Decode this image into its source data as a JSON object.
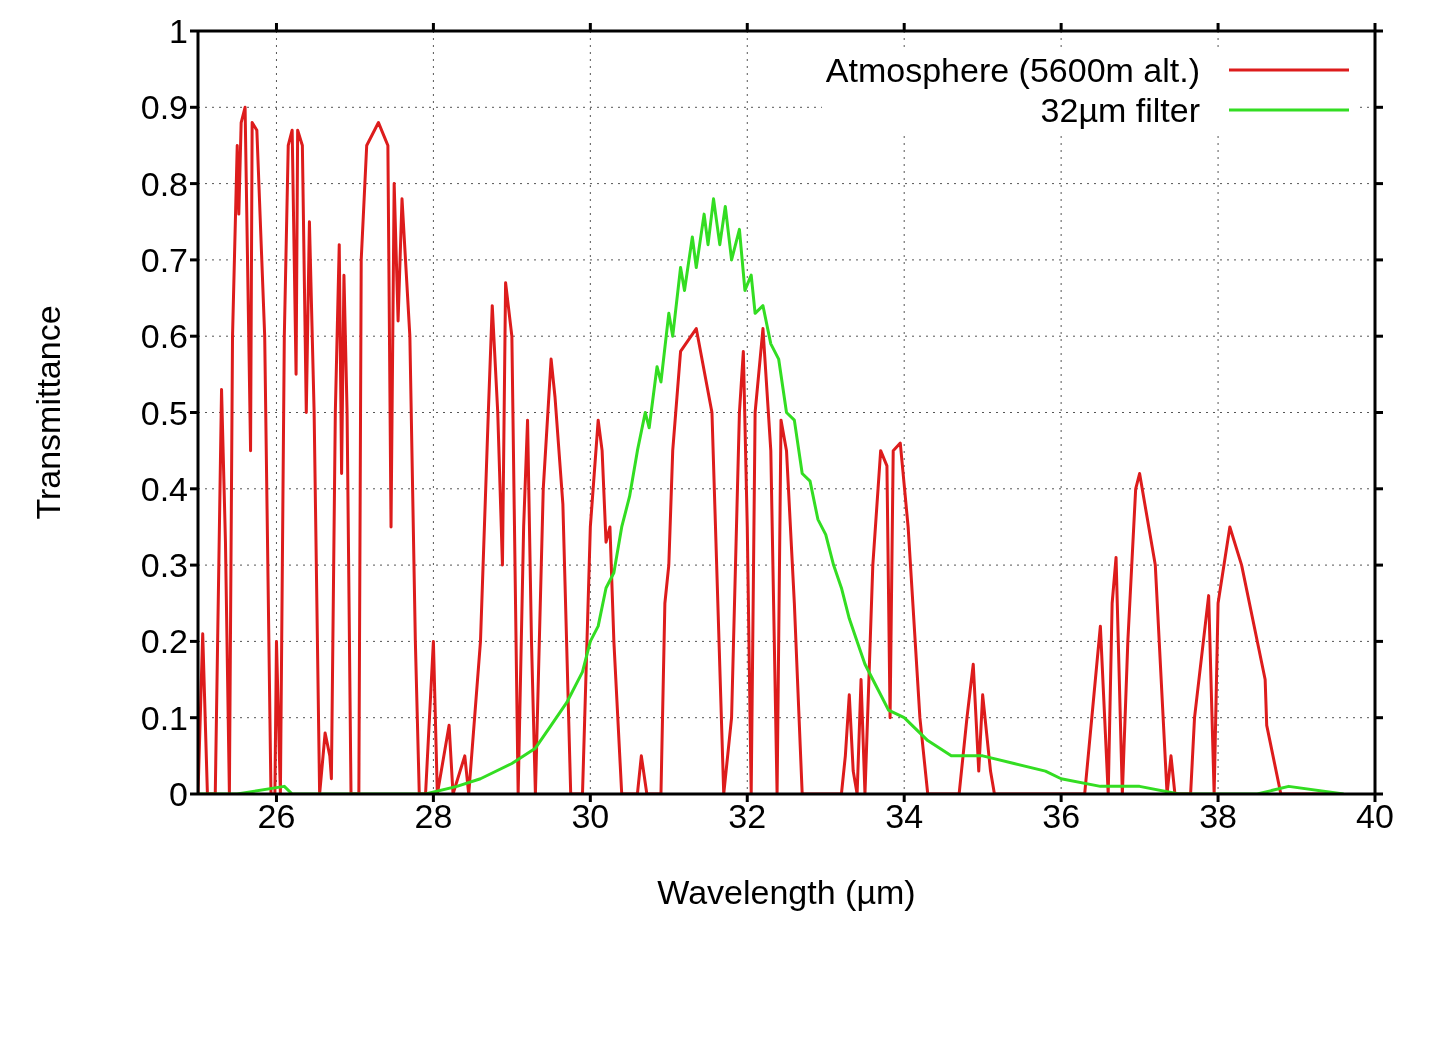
{
  "chart_data": {
    "type": "line",
    "xlabel": "Wavelength (µm)",
    "ylabel": "Transmittance",
    "xlim": [
      25,
      40
    ],
    "xticks": [
      26,
      28,
      30,
      32,
      34,
      36,
      38,
      40
    ],
    "ylim": [
      0,
      1
    ],
    "yticks": [
      0,
      0.1,
      0.2,
      0.3,
      0.4,
      0.5,
      0.6,
      0.7,
      0.8,
      0.9,
      1
    ],
    "grid": true,
    "legend": "top right",
    "line_style": "solid",
    "series": [
      {
        "name": "Atmosphere (5600m alt.)",
        "color": "#dd1c1c",
        "x": [
          25.0,
          25.06,
          25.12,
          25.22,
          25.3,
          25.35,
          25.4,
          25.44,
          25.5,
          25.52,
          25.55,
          25.6,
          25.67,
          25.69,
          25.75,
          25.85,
          25.93,
          25.98,
          26.0,
          26.05,
          26.1,
          26.15,
          26.2,
          26.25,
          26.27,
          26.33,
          26.38,
          26.42,
          26.48,
          26.55,
          26.62,
          26.68,
          26.7,
          26.75,
          26.8,
          26.83,
          26.86,
          26.9,
          26.95,
          27.05,
          27.08,
          27.15,
          27.3,
          27.38,
          27.42,
          27.46,
          27.5,
          27.55,
          27.6,
          27.7,
          27.77,
          27.82,
          27.9,
          28.0,
          28.05,
          28.2,
          28.25,
          28.4,
          28.45,
          28.6,
          28.7,
          28.75,
          28.82,
          28.88,
          28.92,
          29.0,
          29.08,
          29.15,
          29.2,
          29.25,
          29.3,
          29.4,
          29.5,
          29.55,
          29.65,
          29.75,
          29.9,
          30.0,
          30.1,
          30.15,
          30.2,
          30.25,
          30.3,
          30.4,
          30.6,
          30.65,
          30.72,
          30.9,
          30.95,
          31.0,
          31.05,
          31.15,
          31.35,
          31.55,
          31.7,
          31.8,
          31.9,
          31.95,
          32.0,
          32.05,
          32.1,
          32.2,
          32.3,
          32.38,
          32.43,
          32.5,
          32.6,
          32.7,
          33.2,
          33.25,
          33.3,
          33.35,
          33.4,
          33.45,
          33.5,
          33.6,
          33.7,
          33.78,
          33.82,
          33.86,
          33.95,
          34.05,
          34.2,
          34.3,
          34.7,
          34.8,
          34.88,
          34.95,
          35.0,
          35.1,
          35.15,
          36.3,
          36.5,
          36.6,
          36.65,
          36.7,
          36.78,
          36.85,
          36.95,
          37.0,
          37.2,
          37.35,
          37.4,
          37.45,
          37.65,
          37.7,
          37.88,
          37.95,
          38.0,
          38.15,
          38.3,
          38.6,
          38.62,
          38.8,
          39.5
        ],
        "values": [
          0,
          0.21,
          0,
          0,
          0.53,
          0.33,
          0,
          0.6,
          0.85,
          0.76,
          0.88,
          0.9,
          0.45,
          0.88,
          0.87,
          0.6,
          0,
          0,
          0.2,
          0,
          0.6,
          0.85,
          0.87,
          0.55,
          0.87,
          0.85,
          0.5,
          0.75,
          0.5,
          0,
          0.08,
          0.05,
          0.02,
          0.5,
          0.72,
          0.42,
          0.68,
          0.5,
          0,
          0,
          0.7,
          0.85,
          0.88,
          0.86,
          0.85,
          0.35,
          0.8,
          0.62,
          0.78,
          0.6,
          0.2,
          0,
          0,
          0.2,
          0,
          0.09,
          0,
          0.05,
          0,
          0.2,
          0.5,
          0.64,
          0.5,
          0.3,
          0.67,
          0.6,
          0,
          0.35,
          0.49,
          0.2,
          0,
          0.4,
          0.57,
          0.52,
          0.38,
          0,
          0,
          0.35,
          0.49,
          0.45,
          0.33,
          0.35,
          0.2,
          0,
          0,
          0.05,
          0,
          0,
          0.25,
          0.3,
          0.45,
          0.58,
          0.61,
          0.5,
          0,
          0.1,
          0.5,
          0.58,
          0.35,
          0,
          0.5,
          0.61,
          0.45,
          0,
          0.49,
          0.45,
          0.25,
          0,
          0,
          0.05,
          0.13,
          0.03,
          0,
          0.15,
          0,
          0.3,
          0.45,
          0.43,
          0.1,
          0.45,
          0.46,
          0.35,
          0.1,
          0,
          0,
          0.1,
          0.17,
          0.03,
          0.13,
          0.03,
          0,
          0,
          0.22,
          0,
          0.25,
          0.31,
          0,
          0.2,
          0.4,
          0.42,
          0.3,
          0,
          0.05,
          0,
          0,
          0.1,
          0.26,
          0,
          0.25,
          0.35,
          0.3,
          0.15,
          0.09,
          0,
          0
        ]
      },
      {
        "name": "32µm filter",
        "color": "#33dd22",
        "x": [
          25.0,
          25.5,
          26.1,
          26.2,
          27.9,
          28.3,
          28.6,
          29.0,
          29.3,
          29.5,
          29.7,
          29.9,
          30.0,
          30.1,
          30.2,
          30.3,
          30.4,
          30.5,
          30.6,
          30.7,
          30.75,
          30.85,
          30.9,
          31.0,
          31.05,
          31.15,
          31.2,
          31.3,
          31.35,
          31.45,
          31.5,
          31.57,
          31.65,
          31.72,
          31.8,
          31.9,
          31.97,
          32.05,
          32.1,
          32.2,
          32.3,
          32.4,
          32.5,
          32.6,
          32.7,
          32.8,
          32.9,
          33.0,
          33.1,
          33.2,
          33.3,
          33.4,
          33.5,
          33.6,
          33.7,
          33.8,
          34.0,
          34.3,
          34.6,
          35.0,
          35.4,
          35.8,
          36.0,
          36.5,
          37.0,
          37.5,
          38.0,
          38.5,
          38.9,
          39.6
        ],
        "values": [
          0,
          0,
          0.01,
          0,
          0,
          0.01,
          0.02,
          0.04,
          0.06,
          0.09,
          0.12,
          0.16,
          0.2,
          0.22,
          0.27,
          0.29,
          0.35,
          0.39,
          0.45,
          0.5,
          0.48,
          0.56,
          0.54,
          0.63,
          0.6,
          0.69,
          0.66,
          0.73,
          0.69,
          0.76,
          0.72,
          0.78,
          0.72,
          0.77,
          0.7,
          0.74,
          0.66,
          0.68,
          0.63,
          0.64,
          0.59,
          0.57,
          0.5,
          0.49,
          0.42,
          0.41,
          0.36,
          0.34,
          0.3,
          0.27,
          0.23,
          0.2,
          0.17,
          0.15,
          0.13,
          0.11,
          0.1,
          0.07,
          0.05,
          0.05,
          0.04,
          0.03,
          0.02,
          0.01,
          0.01,
          0,
          0,
          0,
          0.01,
          0
        ]
      }
    ]
  }
}
